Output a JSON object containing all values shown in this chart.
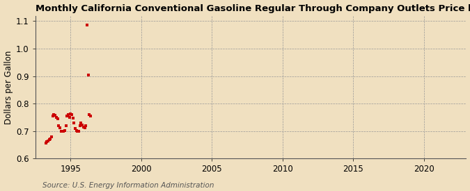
{
  "title": "Monthly California Conventional Gasoline Regular Through Company Outlets Price by All Sellers",
  "ylabel": "Dollars per Gallon",
  "outer_bg_color": "#f0e0c0",
  "plot_bg_color": "#f0e0c0",
  "marker_color": "#cc0000",
  "marker_size": 3.5,
  "xlim": [
    1992.5,
    2023.0
  ],
  "ylim": [
    0.6,
    1.12
  ],
  "yticks": [
    0.6,
    0.7,
    0.8,
    0.9,
    1.0,
    1.1
  ],
  "xticks": [
    1995,
    2000,
    2005,
    2010,
    2015,
    2020
  ],
  "source_text": "Source: U.S. Energy Information Administration",
  "data_x": [
    1993.25,
    1993.33,
    1993.42,
    1993.5,
    1993.58,
    1993.67,
    1993.75,
    1993.83,
    1993.92,
    1994.0,
    1994.08,
    1994.17,
    1994.25,
    1994.33,
    1994.42,
    1994.5,
    1994.58,
    1994.67,
    1994.75,
    1994.83,
    1994.92,
    1995.0,
    1995.08,
    1995.17,
    1995.25,
    1995.33,
    1995.42,
    1995.5,
    1995.58,
    1995.67,
    1995.75,
    1995.83,
    1995.92,
    1996.0,
    1996.08,
    1996.17,
    1996.25,
    1996.33,
    1996.42
  ],
  "data_y": [
    0.655,
    0.66,
    0.663,
    0.668,
    0.672,
    0.678,
    0.755,
    0.76,
    0.758,
    0.75,
    0.745,
    0.72,
    0.712,
    0.7,
    0.698,
    0.7,
    0.702,
    0.718,
    0.755,
    0.76,
    0.75,
    0.762,
    0.76,
    0.748,
    0.73,
    0.71,
    0.702,
    0.7,
    0.698,
    0.718,
    0.73,
    0.722,
    0.715,
    0.712,
    0.72,
    1.085,
    0.905,
    0.76,
    0.755
  ],
  "title_fontsize": 9.5,
  "axis_label_fontsize": 8.5,
  "tick_fontsize": 8.5,
  "source_fontsize": 7.5
}
